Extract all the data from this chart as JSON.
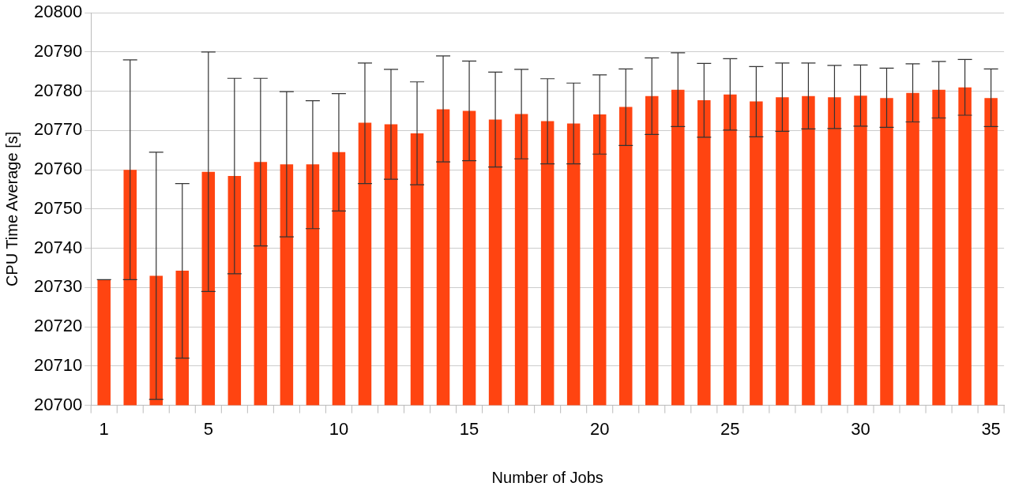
{
  "chart_data": {
    "type": "bar",
    "xlabel": "Number of Jobs",
    "ylabel": "CPU Time Average [s]",
    "x": [
      1,
      2,
      3,
      4,
      5,
      6,
      7,
      8,
      9,
      10,
      11,
      12,
      13,
      14,
      15,
      16,
      17,
      18,
      19,
      20,
      21,
      22,
      23,
      24,
      25,
      26,
      27,
      28,
      29,
      30,
      31,
      32,
      33,
      34,
      35
    ],
    "xlim": [
      0.5,
      35.5
    ],
    "xticks": [
      1,
      5,
      10,
      15,
      20,
      25,
      30,
      35
    ],
    "series": [
      {
        "color": "#ff4411",
        "values": [
          20732,
          20760,
          20733,
          20734.3,
          20759.5,
          20758.4,
          20762,
          20761.4,
          20761.4,
          20764.5,
          20772,
          20771.6,
          20769.3,
          20775.4,
          20775,
          20772.8,
          20774.2,
          20772.4,
          20771.8,
          20774.1,
          20776,
          20778.8,
          20780.4,
          20777.7,
          20779.2,
          20777.4,
          20778.5,
          20778.8,
          20778.5,
          20778.9,
          20778.3,
          20779.6,
          20780.4,
          20781,
          20778.3
        ],
        "errors": [
          0,
          [
            20732,
            20788
          ],
          [
            20701.5,
            20764.5
          ],
          [
            20712,
            20756.5
          ],
          [
            20729,
            20790
          ],
          [
            20733.5,
            20783.3
          ],
          [
            20740.6,
            20783.3
          ],
          [
            20742.9,
            20779.9
          ],
          [
            20745,
            20777.6
          ],
          [
            20749.5,
            20779.4
          ],
          [
            20756.5,
            20787.2
          ],
          [
            20757.6,
            20785.6
          ],
          [
            20756.2,
            20782.4
          ],
          [
            20762,
            20789
          ],
          [
            20762.3,
            20787.7
          ],
          [
            20760.7,
            20784.9
          ],
          [
            20762.8,
            20785.6
          ],
          [
            20761.5,
            20783.2
          ],
          [
            20761.5,
            20782.1
          ],
          [
            20764,
            20784.2
          ],
          [
            20766.2,
            20785.7
          ],
          [
            20769,
            20788.5
          ],
          [
            20771,
            20789.8
          ],
          [
            20768.3,
            20787.1
          ],
          [
            20770.1,
            20788.3
          ],
          [
            20768.4,
            20786.3
          ],
          [
            20769.8,
            20787.2
          ],
          [
            20770.4,
            20787.2
          ],
          [
            20770.5,
            20786.6
          ],
          [
            20771.1,
            20786.7
          ],
          [
            20770.8,
            20785.9
          ],
          [
            20772.2,
            20787
          ],
          [
            20773.2,
            20787.6
          ],
          [
            20773.9,
            20788.1
          ],
          [
            20771,
            20785.7
          ]
        ]
      }
    ],
    "ylim": [
      20700,
      20800
    ],
    "yticks": [
      20700,
      20710,
      20720,
      20730,
      20740,
      20750,
      20760,
      20770,
      20780,
      20790,
      20800
    ],
    "grid": "y",
    "legend": false
  }
}
